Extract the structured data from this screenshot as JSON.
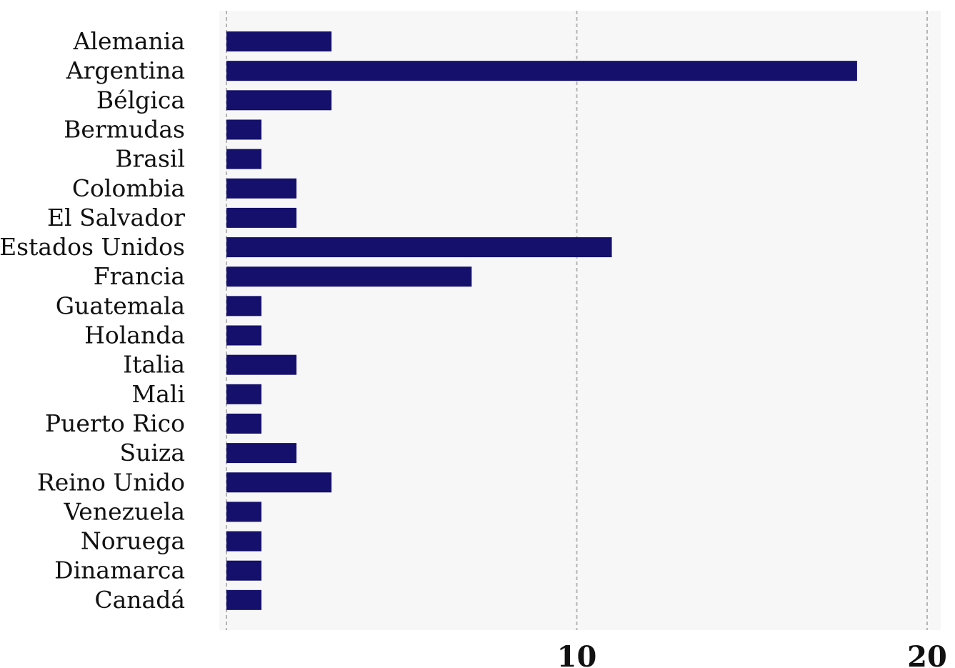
{
  "chart_data": {
    "type": "bar",
    "orientation": "horizontal",
    "categories": [
      "Alemania",
      "Argentina",
      "Bélgica",
      "Bermudas",
      "Brasil",
      "Colombia",
      "El Salvador",
      "Estados Unidos",
      "Francia",
      "Guatemala",
      "Holanda",
      "Italia",
      "Mali",
      "Puerto Rico",
      "Suiza",
      "Reino Unido",
      "Venezuela",
      "Noruega",
      "Dinamarca",
      "Canadá"
    ],
    "values": [
      3,
      18,
      3,
      1,
      1,
      2,
      2,
      11,
      7,
      1,
      1,
      2,
      1,
      1,
      2,
      3,
      1,
      1,
      1,
      1
    ],
    "xlim": [
      0,
      20
    ],
    "xticks": [
      {
        "value": 10,
        "label": "10"
      },
      {
        "value": 20,
        "label": "20"
      }
    ],
    "grid": true,
    "colors": {
      "bar": "#14106b",
      "plot_background": "#f7f7f7",
      "grid": "#b5b5b5"
    }
  }
}
